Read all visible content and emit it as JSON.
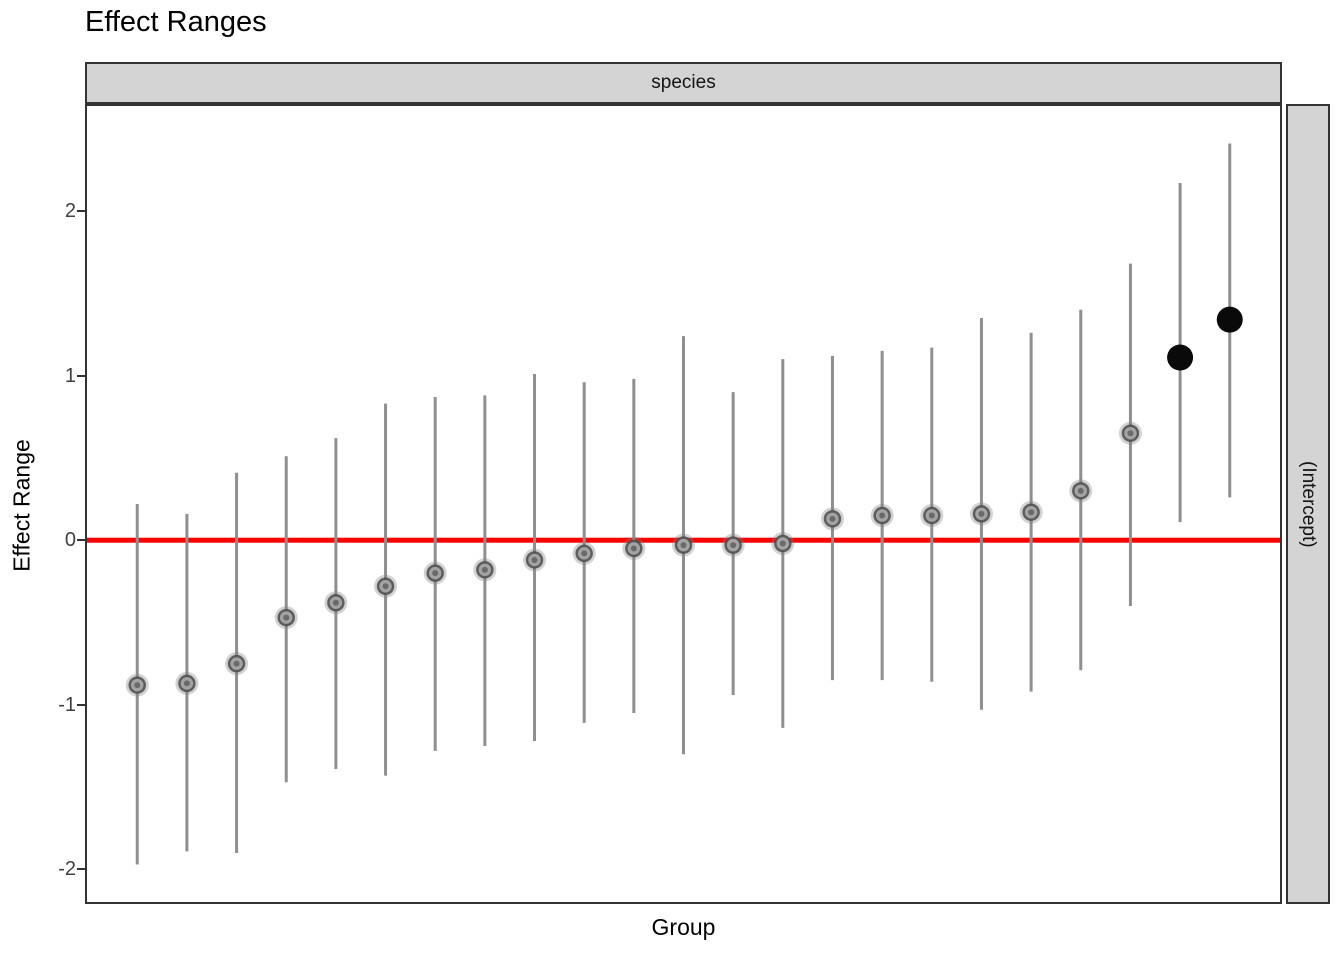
{
  "title": "Effect Ranges",
  "facet": {
    "top_strip": "species",
    "right_strip": "(Intercept)"
  },
  "axes": {
    "x_label": "Group",
    "y_label": "Effect Range",
    "y_ticks": [
      2,
      1,
      0,
      -1,
      -2
    ]
  },
  "colors": {
    "reference_line": "#FF0000",
    "errorbar": "#8F8F8F",
    "point_halo": "rgba(125,125,125,0.35)",
    "point_fill": "#A3A3A3",
    "point_stroke": "rgba(70,70,70,0.8)",
    "point_center": "rgba(60,60,60,0.55)",
    "significant_point": "#0A0A0A",
    "strip_fill": "#D4D4D4",
    "panel_border": "#333333",
    "background": "#FFFFFF"
  },
  "chart_data": {
    "type": "scatter",
    "title": "Effect Ranges",
    "xlabel": "Group",
    "ylabel": "Effect Range",
    "facet_top": "species",
    "facet_right": "(Intercept)",
    "reference_line_y": 0,
    "ylim": [
      -2.21,
      2.65
    ],
    "y_ticks": [
      2,
      1,
      0,
      -1,
      -2
    ],
    "grid": false,
    "legend": "none",
    "x_axis_labels": "none",
    "groups": [
      {
        "est": -0.88,
        "low": -1.97,
        "high": 0.22,
        "significant": false
      },
      {
        "est": -0.87,
        "low": -1.89,
        "high": 0.16,
        "significant": false
      },
      {
        "est": -0.75,
        "low": -1.9,
        "high": 0.41,
        "significant": false
      },
      {
        "est": -0.47,
        "low": -1.47,
        "high": 0.51,
        "significant": false
      },
      {
        "est": -0.38,
        "low": -1.39,
        "high": 0.62,
        "significant": false
      },
      {
        "est": -0.28,
        "low": -1.43,
        "high": 0.83,
        "significant": false
      },
      {
        "est": -0.2,
        "low": -1.28,
        "high": 0.87,
        "significant": false
      },
      {
        "est": -0.18,
        "low": -1.25,
        "high": 0.88,
        "significant": false
      },
      {
        "est": -0.12,
        "low": -1.22,
        "high": 1.01,
        "significant": false
      },
      {
        "est": -0.08,
        "low": -1.11,
        "high": 0.96,
        "significant": false
      },
      {
        "est": -0.05,
        "low": -1.05,
        "high": 0.98,
        "significant": false
      },
      {
        "est": -0.03,
        "low": -1.3,
        "high": 1.24,
        "significant": false
      },
      {
        "est": -0.03,
        "low": -0.94,
        "high": 0.9,
        "significant": false
      },
      {
        "est": -0.02,
        "low": -1.14,
        "high": 1.1,
        "significant": false
      },
      {
        "est": 0.13,
        "low": -0.85,
        "high": 1.12,
        "significant": false
      },
      {
        "est": 0.15,
        "low": -0.85,
        "high": 1.15,
        "significant": false
      },
      {
        "est": 0.15,
        "low": -0.86,
        "high": 1.17,
        "significant": false
      },
      {
        "est": 0.16,
        "low": -1.03,
        "high": 1.35,
        "significant": false
      },
      {
        "est": 0.17,
        "low": -0.92,
        "high": 1.26,
        "significant": false
      },
      {
        "est": 0.3,
        "low": -0.79,
        "high": 1.4,
        "significant": false
      },
      {
        "est": 0.65,
        "low": -0.4,
        "high": 1.68,
        "significant": false
      },
      {
        "est": 1.11,
        "low": 0.11,
        "high": 2.17,
        "significant": true
      },
      {
        "est": 1.34,
        "low": 0.26,
        "high": 2.41,
        "significant": true
      }
    ]
  }
}
